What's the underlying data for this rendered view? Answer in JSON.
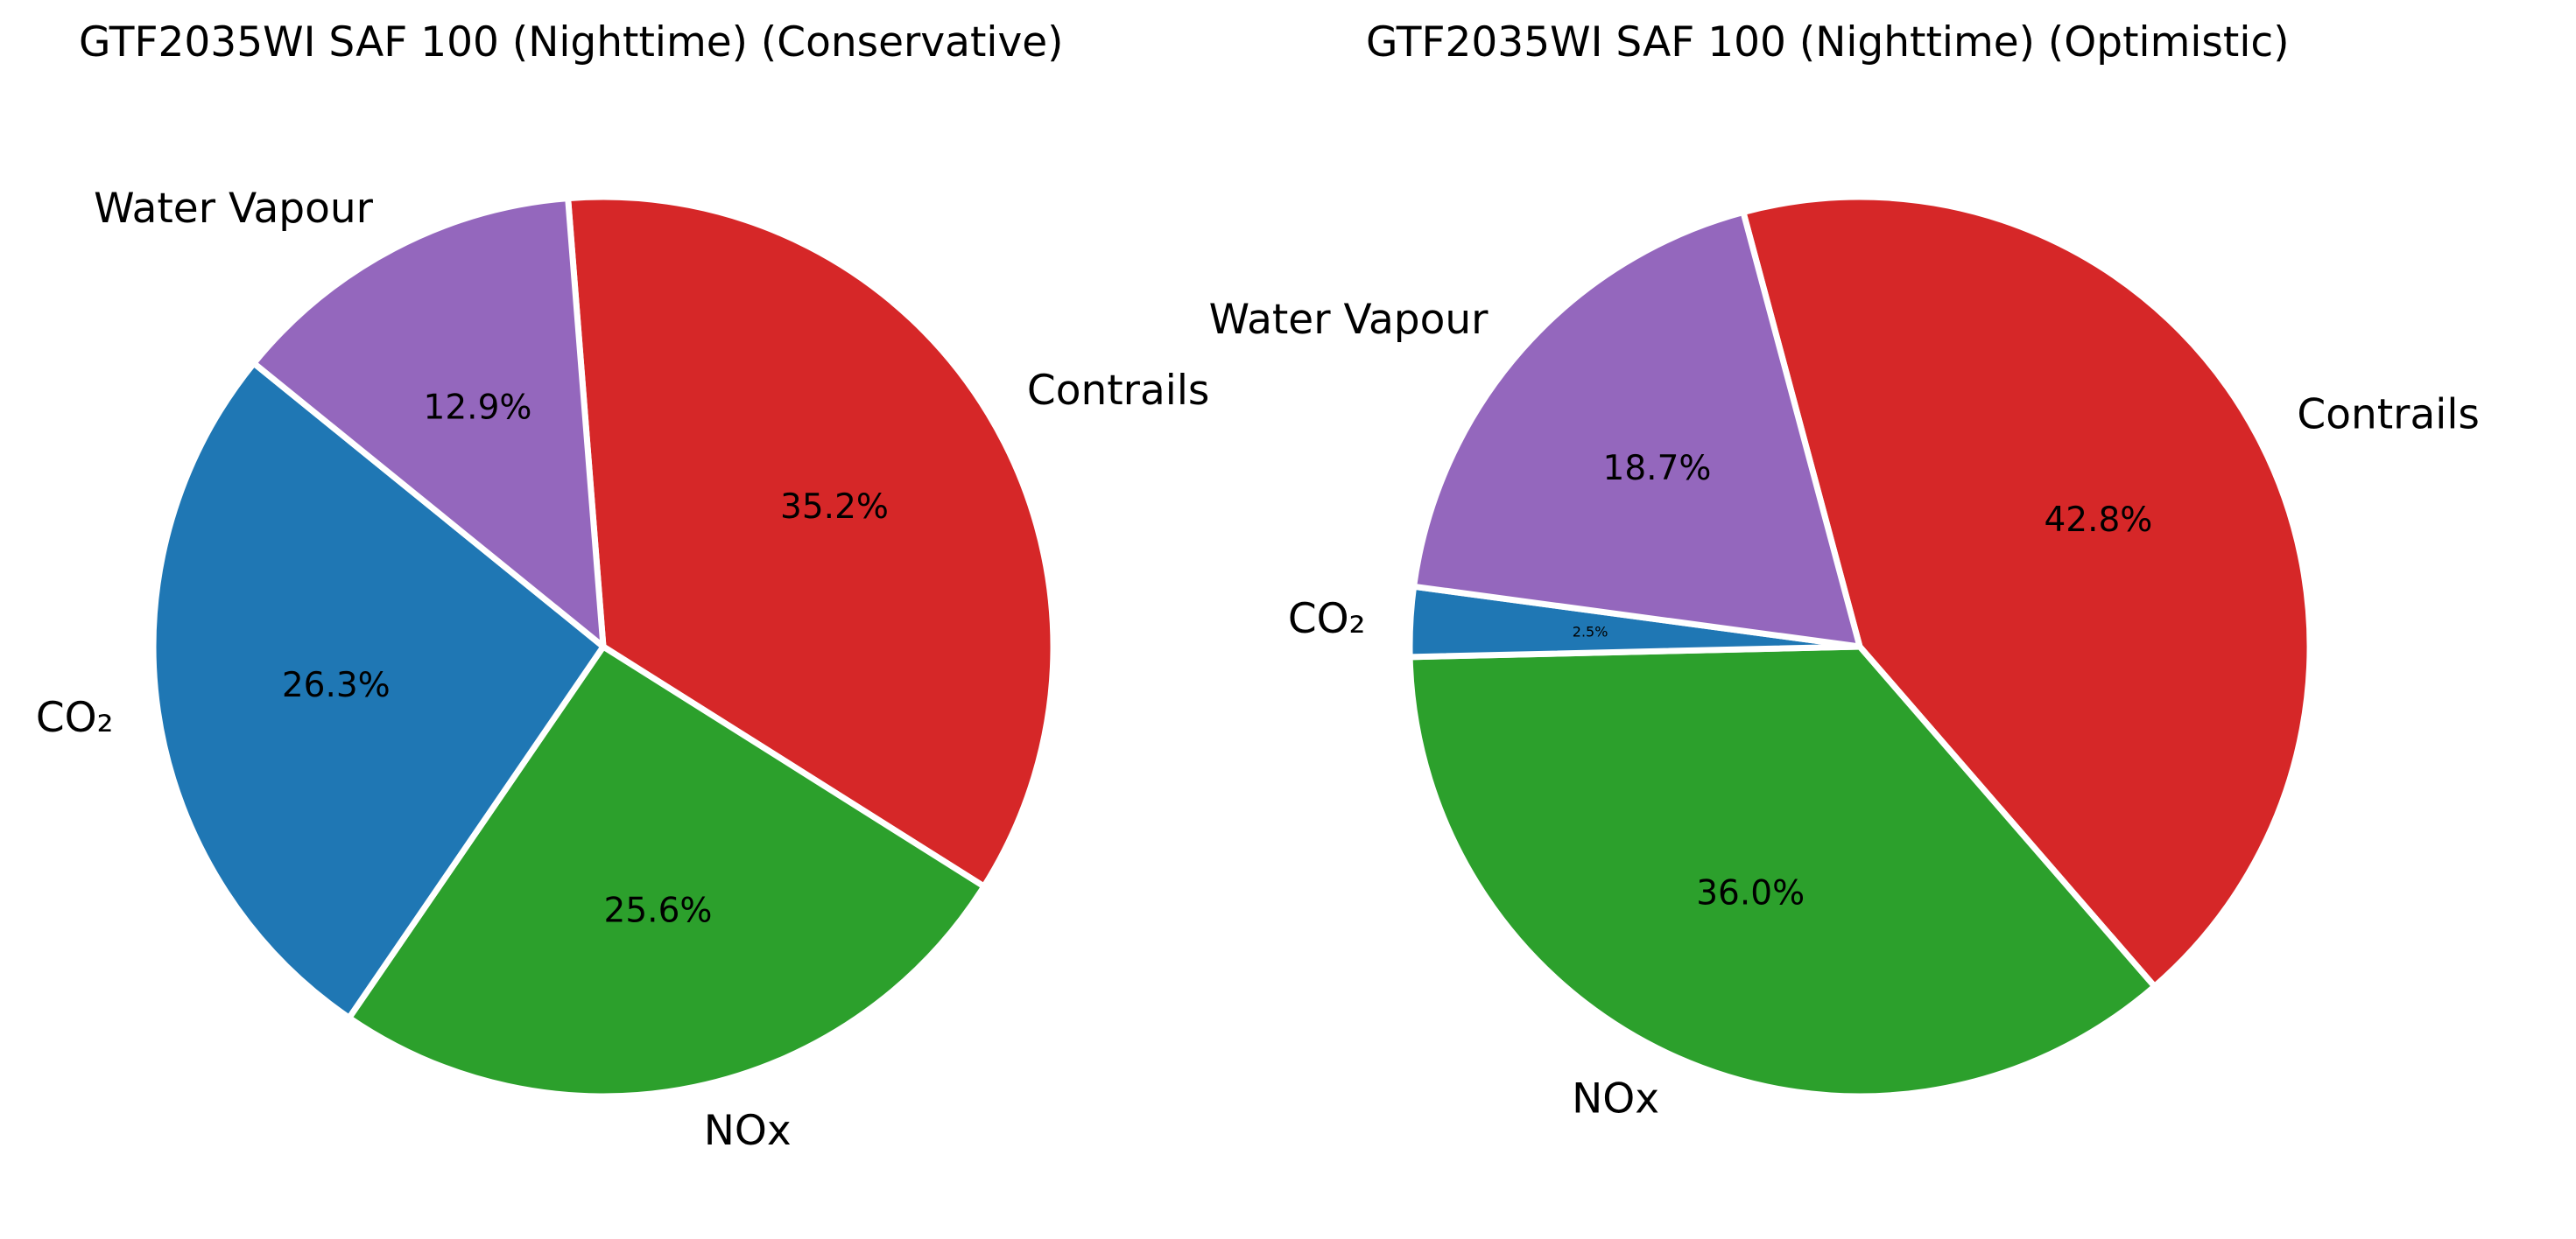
{
  "chart_data": [
    {
      "type": "pie",
      "title": "GTF2035WI SAF 100 (Nighttime) (Conservative)",
      "slices": [
        {
          "label": "Contrails",
          "value": 35.2,
          "pct_label": "35.2%",
          "color": "#d62728"
        },
        {
          "label": "NOx",
          "value": 25.6,
          "pct_label": "25.6%",
          "color": "#2ca02c"
        },
        {
          "label": "CO₂",
          "value": 26.3,
          "pct_label": "26.3%",
          "color": "#1f77b4"
        },
        {
          "label": "Water Vapour",
          "value": 12.9,
          "pct_label": "12.9%",
          "color": "#9467bd"
        }
      ],
      "legend": "none"
    },
    {
      "type": "pie",
      "title": "GTF2035WI SAF 100 (Nighttime) (Optimistic)",
      "slices": [
        {
          "label": "Contrails",
          "value": 42.8,
          "pct_label": "42.8%",
          "color": "#d62728"
        },
        {
          "label": "NOx",
          "value": 36.0,
          "pct_label": "36.0%",
          "color": "#2ca02c"
        },
        {
          "label": "CO₂",
          "value": 2.5,
          "pct_label": "2.5%",
          "color": "#1f77b4"
        },
        {
          "label": "Water Vapour",
          "value": 18.7,
          "pct_label": "18.7%",
          "color": "#9467bd"
        }
      ],
      "legend": "none"
    }
  ]
}
